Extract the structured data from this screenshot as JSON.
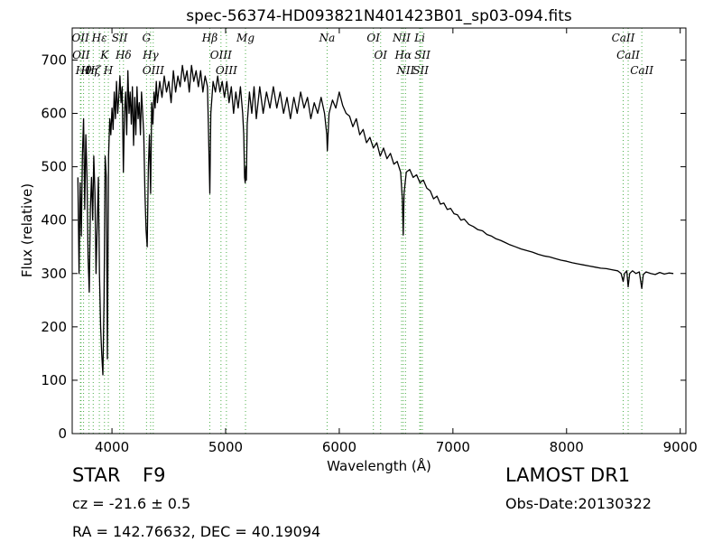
{
  "chart_data": {
    "type": "line",
    "title": "spec-56374-HD093821N401423B01_sp03-094.fits",
    "xlabel": "Wavelength (Å)",
    "ylabel": "Flux (relative)",
    "xlim": [
      3650,
      9050
    ],
    "ylim": [
      0,
      760
    ],
    "xticks": [
      4000,
      5000,
      6000,
      7000,
      8000,
      9000
    ],
    "yticks": [
      0,
      100,
      200,
      300,
      400,
      500,
      600,
      700
    ],
    "grid": false,
    "line_color": "#000000",
    "marker_color": "#4daf4a",
    "series": [
      {
        "points": [
          [
            3700,
            480
          ],
          [
            3710,
            300
          ],
          [
            3720,
            470
          ],
          [
            3730,
            370
          ],
          [
            3740,
            520
          ],
          [
            3750,
            590
          ],
          [
            3760,
            420
          ],
          [
            3770,
            560
          ],
          [
            3780,
            480
          ],
          [
            3790,
            330
          ],
          [
            3800,
            265
          ],
          [
            3810,
            420
          ],
          [
            3820,
            480
          ],
          [
            3830,
            400
          ],
          [
            3840,
            520
          ],
          [
            3850,
            450
          ],
          [
            3860,
            300
          ],
          [
            3870,
            390
          ],
          [
            3880,
            480
          ],
          [
            3890,
            300
          ],
          [
            3900,
            200
          ],
          [
            3910,
            150
          ],
          [
            3920,
            110
          ],
          [
            3930,
            250
          ],
          [
            3940,
            520
          ],
          [
            3950,
            480
          ],
          [
            3960,
            140
          ],
          [
            3970,
            520
          ],
          [
            3980,
            590
          ],
          [
            3990,
            560
          ],
          [
            4000,
            610
          ],
          [
            4010,
            570
          ],
          [
            4020,
            640
          ],
          [
            4030,
            590
          ],
          [
            4040,
            660
          ],
          [
            4050,
            600
          ],
          [
            4060,
            630
          ],
          [
            4070,
            670
          ],
          [
            4080,
            620
          ],
          [
            4090,
            650
          ],
          [
            4100,
            490
          ],
          [
            4110,
            600
          ],
          [
            4120,
            640
          ],
          [
            4130,
            560
          ],
          [
            4140,
            680
          ],
          [
            4150,
            600
          ],
          [
            4160,
            640
          ],
          [
            4170,
            580
          ],
          [
            4180,
            650
          ],
          [
            4190,
            540
          ],
          [
            4200,
            630
          ],
          [
            4210,
            560
          ],
          [
            4220,
            650
          ],
          [
            4230,
            590
          ],
          [
            4240,
            620
          ],
          [
            4250,
            560
          ],
          [
            4260,
            640
          ],
          [
            4270,
            600
          ],
          [
            4280,
            560
          ],
          [
            4290,
            450
          ],
          [
            4300,
            380
          ],
          [
            4310,
            350
          ],
          [
            4320,
            500
          ],
          [
            4330,
            560
          ],
          [
            4340,
            450
          ],
          [
            4350,
            620
          ],
          [
            4360,
            580
          ],
          [
            4370,
            640
          ],
          [
            4380,
            610
          ],
          [
            4390,
            660
          ],
          [
            4400,
            620
          ],
          [
            4420,
            660
          ],
          [
            4440,
            630
          ],
          [
            4460,
            670
          ],
          [
            4480,
            640
          ],
          [
            4500,
            660
          ],
          [
            4520,
            620
          ],
          [
            4540,
            680
          ],
          [
            4560,
            640
          ],
          [
            4580,
            670
          ],
          [
            4600,
            650
          ],
          [
            4620,
            690
          ],
          [
            4640,
            660
          ],
          [
            4660,
            680
          ],
          [
            4680,
            640
          ],
          [
            4700,
            690
          ],
          [
            4720,
            660
          ],
          [
            4740,
            680
          ],
          [
            4760,
            650
          ],
          [
            4780,
            680
          ],
          [
            4800,
            640
          ],
          [
            4820,
            670
          ],
          [
            4840,
            650
          ],
          [
            4850,
            560
          ],
          [
            4861,
            450
          ],
          [
            4870,
            600
          ],
          [
            4890,
            660
          ],
          [
            4910,
            640
          ],
          [
            4930,
            670
          ],
          [
            4950,
            640
          ],
          [
            4970,
            660
          ],
          [
            4990,
            630
          ],
          [
            5010,
            660
          ],
          [
            5030,
            620
          ],
          [
            5050,
            650
          ],
          [
            5070,
            600
          ],
          [
            5090,
            640
          ],
          [
            5110,
            610
          ],
          [
            5130,
            650
          ],
          [
            5150,
            600
          ],
          [
            5160,
            560
          ],
          [
            5167,
            480
          ],
          [
            5172,
            470
          ],
          [
            5178,
            500
          ],
          [
            5183,
            475
          ],
          [
            5190,
            580
          ],
          [
            5210,
            640
          ],
          [
            5230,
            600
          ],
          [
            5250,
            650
          ],
          [
            5270,
            590
          ],
          [
            5300,
            650
          ],
          [
            5330,
            600
          ],
          [
            5360,
            640
          ],
          [
            5390,
            610
          ],
          [
            5420,
            650
          ],
          [
            5450,
            610
          ],
          [
            5480,
            640
          ],
          [
            5510,
            600
          ],
          [
            5540,
            630
          ],
          [
            5570,
            590
          ],
          [
            5600,
            630
          ],
          [
            5630,
            600
          ],
          [
            5660,
            640
          ],
          [
            5690,
            610
          ],
          [
            5720,
            630
          ],
          [
            5750,
            590
          ],
          [
            5780,
            620
          ],
          [
            5810,
            600
          ],
          [
            5840,
            630
          ],
          [
            5870,
            600
          ],
          [
            5890,
            560
          ],
          [
            5895,
            530
          ],
          [
            5910,
            600
          ],
          [
            5940,
            625
          ],
          [
            5970,
            610
          ],
          [
            6000,
            640
          ],
          [
            6030,
            615
          ],
          [
            6060,
            600
          ],
          [
            6090,
            595
          ],
          [
            6120,
            575
          ],
          [
            6150,
            590
          ],
          [
            6180,
            560
          ],
          [
            6210,
            570
          ],
          [
            6240,
            545
          ],
          [
            6270,
            555
          ],
          [
            6300,
            535
          ],
          [
            6330,
            545
          ],
          [
            6360,
            520
          ],
          [
            6390,
            535
          ],
          [
            6420,
            515
          ],
          [
            6450,
            525
          ],
          [
            6480,
            505
          ],
          [
            6510,
            510
          ],
          [
            6540,
            490
          ],
          [
            6555,
            440
          ],
          [
            6563,
            372
          ],
          [
            6570,
            450
          ],
          [
            6590,
            490
          ],
          [
            6620,
            495
          ],
          [
            6650,
            480
          ],
          [
            6680,
            485
          ],
          [
            6710,
            470
          ],
          [
            6740,
            475
          ],
          [
            6770,
            460
          ],
          [
            6800,
            455
          ],
          [
            6830,
            440
          ],
          [
            6860,
            445
          ],
          [
            6890,
            430
          ],
          [
            6920,
            432
          ],
          [
            6950,
            420
          ],
          [
            6980,
            422
          ],
          [
            7010,
            412
          ],
          [
            7040,
            410
          ],
          [
            7070,
            400
          ],
          [
            7100,
            402
          ],
          [
            7140,
            392
          ],
          [
            7180,
            388
          ],
          [
            7220,
            382
          ],
          [
            7260,
            380
          ],
          [
            7300,
            373
          ],
          [
            7340,
            370
          ],
          [
            7380,
            365
          ],
          [
            7420,
            362
          ],
          [
            7460,
            358
          ],
          [
            7500,
            354
          ],
          [
            7550,
            350
          ],
          [
            7600,
            346
          ],
          [
            7650,
            343
          ],
          [
            7700,
            340
          ],
          [
            7750,
            336
          ],
          [
            7800,
            333
          ],
          [
            7850,
            331
          ],
          [
            7900,
            328
          ],
          [
            7950,
            325
          ],
          [
            8000,
            323
          ],
          [
            8050,
            320
          ],
          [
            8100,
            318
          ],
          [
            8150,
            316
          ],
          [
            8200,
            314
          ],
          [
            8250,
            312
          ],
          [
            8300,
            310
          ],
          [
            8350,
            309
          ],
          [
            8400,
            307
          ],
          [
            8450,
            305
          ],
          [
            8480,
            300
          ],
          [
            8498,
            285
          ],
          [
            8510,
            300
          ],
          [
            8530,
            305
          ],
          [
            8542,
            275
          ],
          [
            8555,
            300
          ],
          [
            8580,
            305
          ],
          [
            8610,
            300
          ],
          [
            8640,
            303
          ],
          [
            8662,
            272
          ],
          [
            8675,
            298
          ],
          [
            8700,
            303
          ],
          [
            8740,
            300
          ],
          [
            8780,
            298
          ],
          [
            8820,
            302
          ],
          [
            8860,
            299
          ],
          [
            8900,
            301
          ],
          [
            8940,
            300
          ]
        ]
      }
    ],
    "lines": [
      {
        "wl": 3722,
        "label": "OII"
      },
      {
        "wl": 3728,
        "label": "OII"
      },
      {
        "wl": 3750,
        "label": "Hθ"
      },
      {
        "wl": 3798,
        "label": "Hη"
      },
      {
        "wl": 3835,
        "label": "Hζ"
      },
      {
        "wl": 3889,
        "label": "Hε"
      },
      {
        "wl": 3934,
        "label": "K"
      },
      {
        "wl": 3968,
        "label": "H"
      },
      {
        "wl": 4068,
        "label": "SII"
      },
      {
        "wl": 4101,
        "label": "Hδ"
      },
      {
        "wl": 4304,
        "label": "G"
      },
      {
        "wl": 4340,
        "label": "Hγ"
      },
      {
        "wl": 4363,
        "label": "OIII"
      },
      {
        "wl": 4861,
        "label": "Hβ"
      },
      {
        "wl": 4959,
        "label": "OIII"
      },
      {
        "wl": 5007,
        "label": "OIII"
      },
      {
        "wl": 5175,
        "label": "Mg"
      },
      {
        "wl": 5893,
        "label": "Na"
      },
      {
        "wl": 6300,
        "label": "OI"
      },
      {
        "wl": 6364,
        "label": "OI"
      },
      {
        "wl": 6548,
        "label": "NII"
      },
      {
        "wl": 6563,
        "label": "Hα"
      },
      {
        "wl": 6583,
        "label": "NII"
      },
      {
        "wl": 6708,
        "label": "Li"
      },
      {
        "wl": 6716,
        "label": "SII"
      },
      {
        "wl": 6731,
        "label": "SII"
      },
      {
        "wl": 8498,
        "label": "CaII"
      },
      {
        "wl": 8542,
        "label": "CaII"
      },
      {
        "wl": 8662,
        "label": "CaII"
      }
    ]
  },
  "info": {
    "object_type": "STAR",
    "subclass": "F9",
    "redshift": "cz = -21.6 ± 0.5",
    "coords": "RA = 142.76632, DEC = 40.19094",
    "survey": "LAMOST DR1",
    "obs_date": "Obs-Date:20130322"
  }
}
